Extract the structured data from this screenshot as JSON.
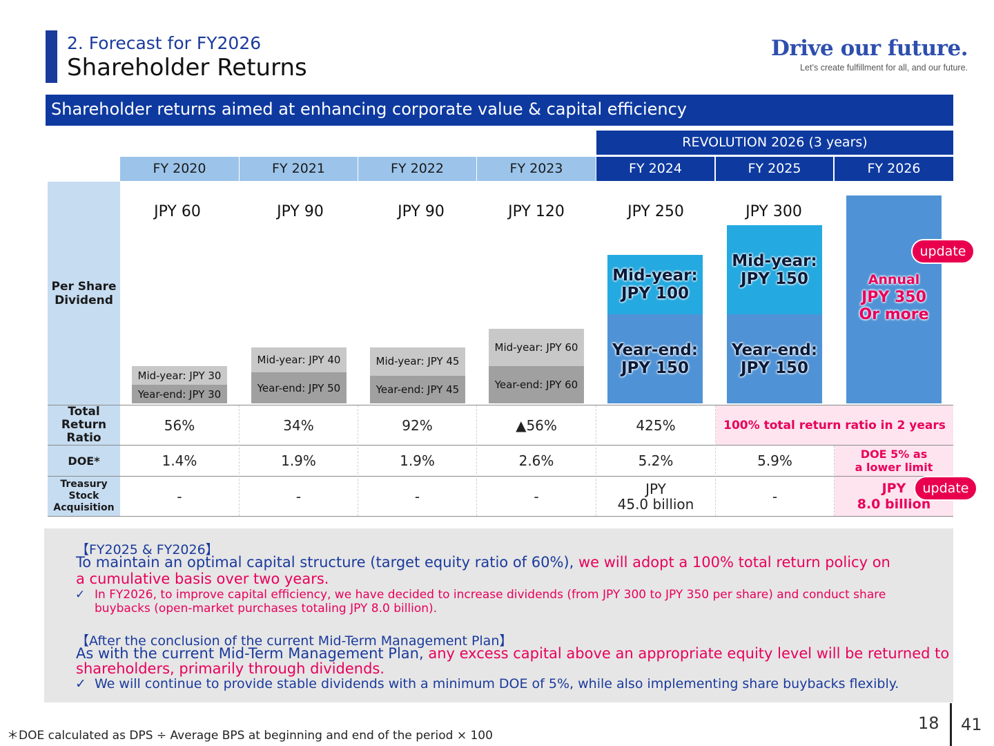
{
  "header": {
    "section": "2. Forecast for FY2026",
    "title": "Shareholder Returns",
    "brand_title": "Drive our future.",
    "brand_tagline": "Let’s create fulfillment for all, and our future."
  },
  "banner": "Shareholder returns aimed at enhancing corporate value & capital efficiency",
  "plan_header": "REVOLUTION 2026 (3 years)",
  "row_labels": {
    "dps": "Per Share Dividend",
    "total_return": "Total Return Ratio",
    "doe": "DOE*",
    "treasury": "Treasury Stock Acquisition"
  },
  "update_label": "update",
  "chart_data": {
    "type": "bar",
    "stacked": true,
    "categories": [
      "FY 2020",
      "FY 2021",
      "FY 2022",
      "FY 2023",
      "FY 2024",
      "FY 2025",
      "FY 2026"
    ],
    "totals": [
      "JPY 60",
      "JPY 90",
      "JPY 90",
      "JPY 120",
      "JPY 250",
      "JPY 300",
      ""
    ],
    "series": [
      {
        "name": "Year-end",
        "values": [
          30,
          50,
          45,
          60,
          150,
          150,
          null
        ]
      },
      {
        "name": "Mid-year",
        "values": [
          30,
          40,
          45,
          60,
          100,
          150,
          null
        ]
      }
    ],
    "forecast": {
      "category": "FY 2026",
      "value": 350
    },
    "bar_labels": {
      "year_end": [
        "Year-end: JPY 30",
        "Year-end: JPY 50",
        "Year-end: JPY 45",
        "Year-end: JPY 60",
        "Year-end:",
        "Year-end:"
      ],
      "year_end_value": [
        "",
        "",
        "",
        "",
        "JPY 150",
        "JPY 150"
      ],
      "mid_year": [
        "Mid-year: JPY 30",
        "Mid-year: JPY 40",
        "Mid-year: JPY 45",
        "Mid-year: JPY 60",
        "Mid-year:",
        "Mid-year:"
      ],
      "mid_year_value": [
        "",
        "",
        "",
        "",
        "JPY 100",
        "JPY 150"
      ],
      "forecast": [
        "Annual",
        "JPY 350",
        "Or more"
      ]
    },
    "colors": {
      "past_mid": "#c8c8c8",
      "past_year_end": "#a0a0a0",
      "mid_year": "#24a9e0",
      "year_end": "#4f93d6",
      "forecast": "#4f93d6",
      "header_past": "#9cc4ea",
      "header_current": "#0e3aa0",
      "highlight": "#e8005a"
    }
  },
  "total_return_ratio": [
    "56%",
    "34%",
    "92%",
    "▲56%",
    "425%"
  ],
  "total_return_note": "100% total return ratio in 2 years",
  "doe": [
    "1.4%",
    "1.9%",
    "1.9%",
    "2.6%",
    "5.2%",
    "5.9%"
  ],
  "doe_note": [
    "DOE 5% as",
    "a lower limit"
  ],
  "treasury": [
    "-",
    "-",
    "-",
    "-",
    "JPY",
    "45.0 billion",
    "-"
  ],
  "treasury_2026": [
    "JPY",
    "8.0 billion"
  ],
  "notes": {
    "tag1": "【FY2025 & FY2026】",
    "line1_navy": "To maintain an optimal capital structure (target equity ratio of 60%),",
    "line1_pink": " we will adopt a 100% total return policy on",
    "line2": "a cumulative basis over two years.",
    "check1_a": "In FY2026, to improve capital efficiency, we have decided to increase dividends (from JPY 300 to JPY 350 per share) and conduct share",
    "check1_b": "buybacks (open-market purchases totaling JPY 8.0 billion).",
    "tag2": "【After the conclusion of the current Mid-Term Management Plan】",
    "line3_navy": "As with the current Mid-Term Management Plan,",
    "line3_pink": " any excess capital above an appropriate equity level will be returned to",
    "line4": "shareholders, primarily through dividends.",
    "check2": "We will continue to provide stable dividends with a minimum DOE of 5%, while also implementing share buybacks flexibly.",
    "check_mark": "✓"
  },
  "footnote": "＊DOE calculated as DPS ÷ Average BPS at beginning and end of the period × 100",
  "page": {
    "left": "18",
    "right": "41"
  }
}
